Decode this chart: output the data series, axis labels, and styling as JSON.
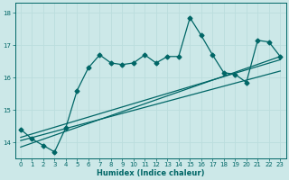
{
  "xlabel": "Humidex (Indice chaleur)",
  "background_color": "#cce8e8",
  "grid_color": "#bbdddd",
  "line_color": "#006666",
  "xlim": [
    -0.5,
    23.5
  ],
  "ylim": [
    13.5,
    18.3
  ],
  "yticks": [
    14,
    15,
    16,
    17,
    18
  ],
  "xticks": [
    0,
    1,
    2,
    3,
    4,
    5,
    6,
    7,
    8,
    9,
    10,
    11,
    12,
    13,
    14,
    15,
    16,
    17,
    18,
    19,
    20,
    21,
    22,
    23
  ],
  "jagged_x": [
    0,
    1,
    2,
    3,
    4,
    5,
    6,
    7,
    8,
    9,
    10,
    11,
    12,
    13,
    14,
    15,
    16,
    17,
    18,
    19,
    20,
    21,
    22,
    23
  ],
  "jagged_y": [
    14.4,
    14.1,
    13.9,
    13.7,
    14.45,
    15.6,
    16.3,
    16.7,
    16.45,
    16.4,
    16.45,
    16.7,
    16.45,
    16.65,
    16.65,
    17.85,
    17.3,
    16.7,
    16.15,
    16.1,
    15.85,
    17.15,
    17.1,
    16.65
  ],
  "trend1_x": [
    0,
    23
  ],
  "trend1_y": [
    14.15,
    16.55
  ],
  "trend2_x": [
    0,
    23
  ],
  "trend2_y": [
    14.05,
    16.2
  ],
  "trend3_x": [
    0,
    23
  ],
  "trend3_y": [
    13.85,
    16.65
  ]
}
